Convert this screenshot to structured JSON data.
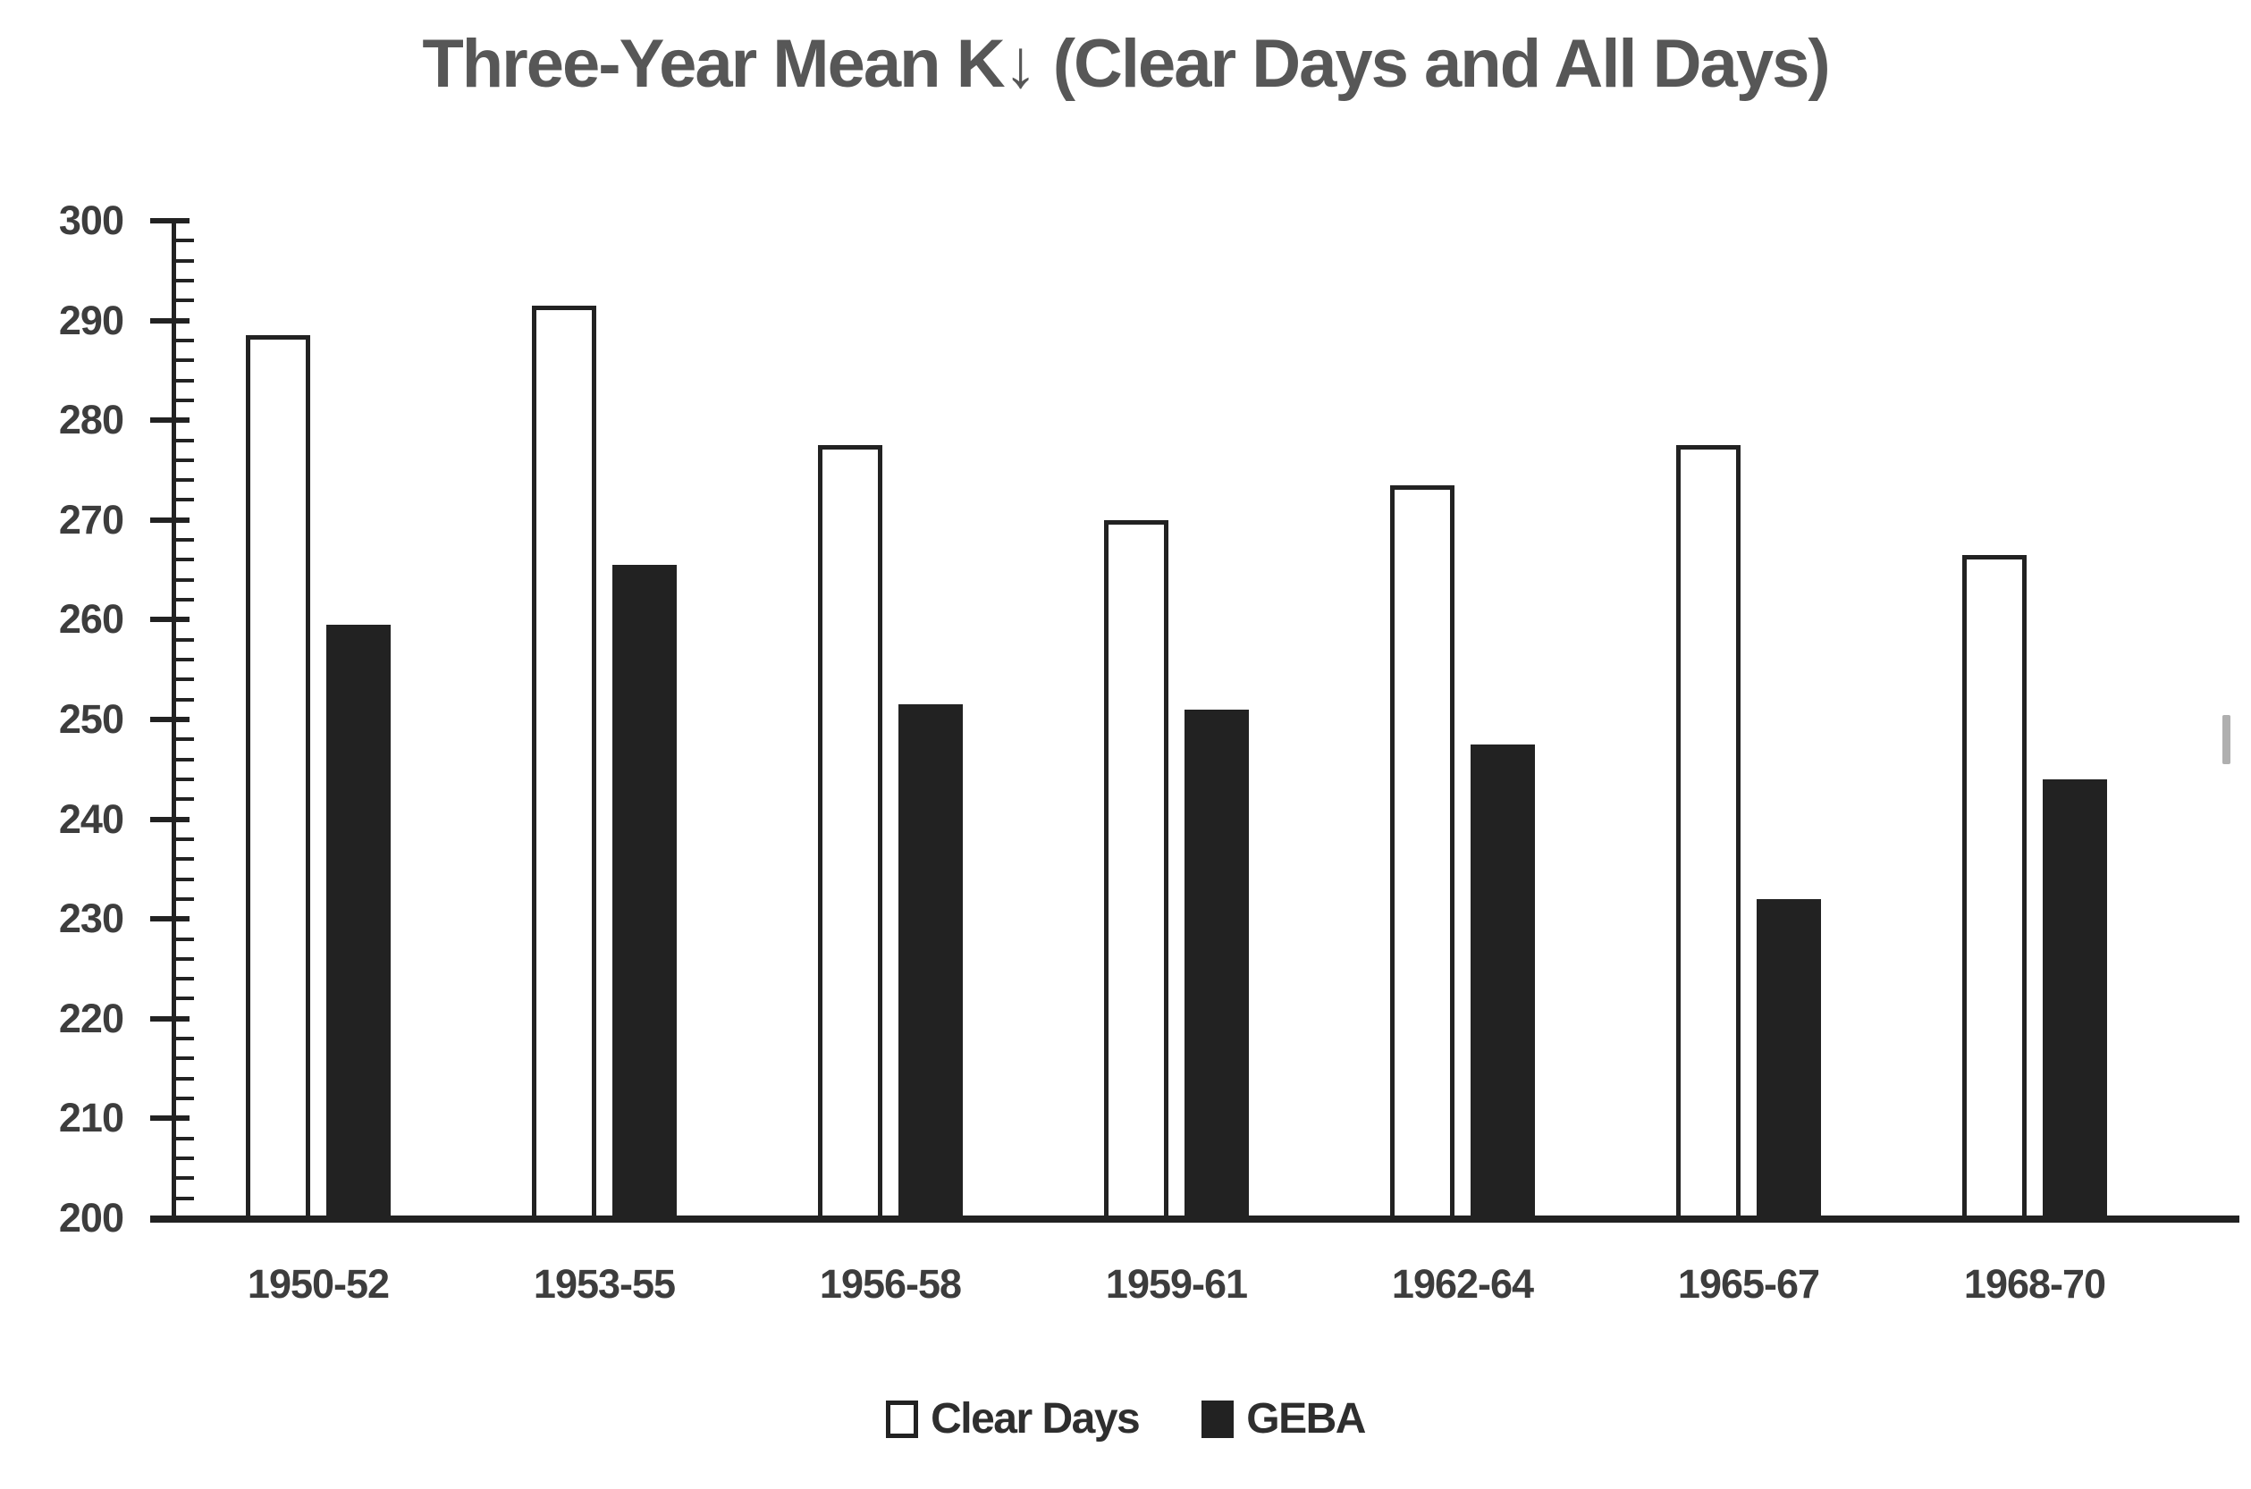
{
  "title": "Three-Year Mean K↓ (Clear Days and All Days)",
  "chart_data": {
    "type": "bar",
    "title": "Three-Year Mean K↓ (Clear Days and All Days)",
    "categories": [
      "1950-52",
      "1953-55",
      "1956-58",
      "1959-61",
      "1962-64",
      "1965-67",
      "1968-70"
    ],
    "series": [
      {
        "name": "Clear Days",
        "style": "outline",
        "values": [
          288.5,
          291.5,
          277.5,
          270,
          273.5,
          277.5,
          266.5
        ]
      },
      {
        "name": "GEBA",
        "style": "solid",
        "values": [
          259.5,
          265.5,
          251.5,
          251,
          247.5,
          232,
          244
        ]
      }
    ],
    "xlabel": "",
    "ylabel": "",
    "ylim": [
      200,
      300
    ],
    "y_major_step": 10,
    "y_minor_step": 2,
    "y_tick_labels": [
      "300",
      "290",
      "280",
      "270",
      "260",
      "250",
      "240",
      "230",
      "220",
      "210",
      "200"
    ],
    "grid": "off",
    "legend_position": "bottom",
    "colors": {
      "bar_black": "#222222",
      "outline_bar_fill": "#ffffff",
      "title_color": "#575757",
      "axis_label_color": "#3d3d3d",
      "legend_text_color": "#2e2e2e",
      "background": "#ffffff"
    }
  }
}
